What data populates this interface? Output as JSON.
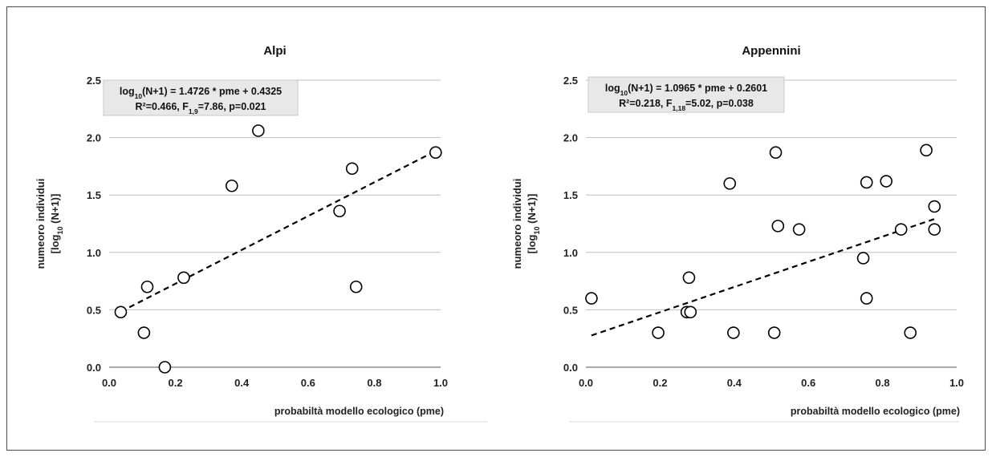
{
  "chart_data": [
    {
      "type": "scatter",
      "title": "Alpi",
      "xlabel": "probabiltà modello ecologico (pme)",
      "ylabel": {
        "line1": "numeoro individui",
        "line2_pre": "[log",
        "line2_sub": "10",
        "line2_post": " (N+1)]"
      },
      "xlim": [
        0,
        1
      ],
      "ylim": [
        0,
        2.5
      ],
      "x_ticks": [
        "0.0",
        "0.2",
        "0.4",
        "0.6",
        "0.8",
        "1.0"
      ],
      "y_ticks": [
        "0.0",
        "0.5",
        "1.0",
        "1.5",
        "2.0",
        "2.5"
      ],
      "grid": true,
      "points": [
        [
          0.035,
          0.48
        ],
        [
          0.105,
          0.3
        ],
        [
          0.115,
          0.7
        ],
        [
          0.168,
          0.0
        ],
        [
          0.225,
          0.78
        ],
        [
          0.37,
          1.58
        ],
        [
          0.45,
          2.06
        ],
        [
          0.695,
          1.36
        ],
        [
          0.733,
          1.73
        ],
        [
          0.745,
          0.7
        ],
        [
          0.985,
          1.87
        ]
      ],
      "trendline": {
        "slope": 1.4726,
        "intercept": 0.4325,
        "x_range": [
          0.035,
          0.985
        ]
      },
      "equation": {
        "line1": {
          "pre": "log",
          "sub": "10",
          "post": "(N+1) = 1.4726 * pme + 0.4325"
        },
        "line2": {
          "pre": "R²=0.466, F",
          "sub": "1,9",
          "post": "=7.86, p=0.021"
        }
      }
    },
    {
      "type": "scatter",
      "title": "Appennini",
      "xlabel": "probabiltà modello ecologico (pme)",
      "ylabel": {
        "line1": "numeoro individui",
        "line2_pre": "[log",
        "line2_sub": "10",
        "line2_post": " (N+1)]"
      },
      "xlim": [
        0,
        1
      ],
      "ylim": [
        0,
        2.5
      ],
      "x_ticks": [
        "0.0",
        "0.2",
        "0.4",
        "0.6",
        "0.8",
        "1.0"
      ],
      "y_ticks": [
        "0.0",
        "0.5",
        "1.0",
        "1.5",
        "2.0",
        "2.5"
      ],
      "grid": true,
      "points": [
        [
          0.015,
          0.6
        ],
        [
          0.195,
          0.3
        ],
        [
          0.272,
          0.48
        ],
        [
          0.278,
          0.78
        ],
        [
          0.282,
          0.48
        ],
        [
          0.388,
          1.6
        ],
        [
          0.398,
          0.3
        ],
        [
          0.508,
          0.3
        ],
        [
          0.512,
          1.87
        ],
        [
          0.518,
          1.23
        ],
        [
          0.575,
          1.2
        ],
        [
          0.748,
          0.95
        ],
        [
          0.757,
          1.61
        ],
        [
          0.757,
          0.6
        ],
        [
          0.81,
          1.62
        ],
        [
          0.85,
          1.2
        ],
        [
          0.875,
          0.3
        ],
        [
          0.918,
          1.89
        ],
        [
          0.94,
          1.4
        ],
        [
          0.94,
          1.2
        ]
      ],
      "trendline": {
        "slope": 1.0965,
        "intercept": 0.2601,
        "x_range": [
          0.015,
          0.94
        ]
      },
      "equation": {
        "line1": {
          "pre": "log",
          "sub": "10",
          "post": "(N+1) = 1.0965 * pme + 0.2601"
        },
        "line2": {
          "pre": "R²=0.218, F",
          "sub": "1,18",
          "post": "=5.02, p=0.038"
        }
      }
    }
  ]
}
